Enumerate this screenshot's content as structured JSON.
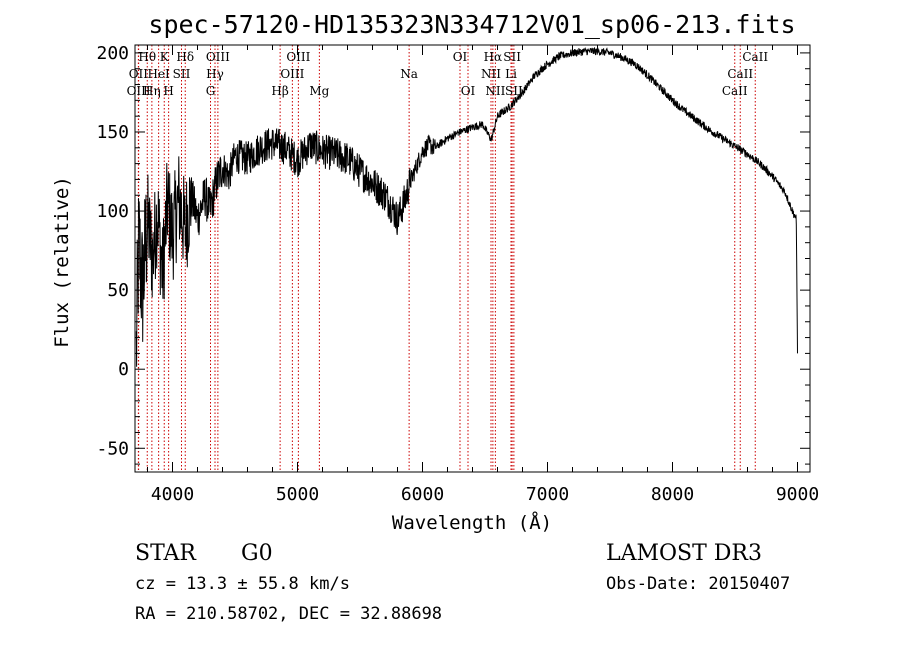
{
  "chart_data": {
    "type": "line",
    "title": "spec-57120-HD135323N334712V01_sp06-213.fits",
    "xlabel": "Wavelength (Å)",
    "ylabel": "Flux (relative)",
    "xlim": [
      3700,
      9100
    ],
    "ylim": [
      -65,
      205
    ],
    "xticks": [
      4000,
      5000,
      6000,
      7000,
      8000,
      9000
    ],
    "yticks": [
      -50,
      0,
      50,
      100,
      150,
      200
    ],
    "series": [
      {
        "name": "spectrum",
        "points": [
          [
            3710,
            10
          ],
          [
            3730,
            80
          ],
          [
            3760,
            50
          ],
          [
            3800,
            95
          ],
          [
            3840,
            70
          ],
          [
            3880,
            100
          ],
          [
            3920,
            60
          ],
          [
            3960,
            105
          ],
          [
            4000,
            85
          ],
          [
            4050,
            108
          ],
          [
            4100,
            88
          ],
          [
            4150,
            110
          ],
          [
            4200,
            95
          ],
          [
            4260,
            110
          ],
          [
            4300,
            100
          ],
          [
            4350,
            118
          ],
          [
            4400,
            128
          ],
          [
            4450,
            122
          ],
          [
            4500,
            135
          ],
          [
            4600,
            133
          ],
          [
            4700,
            140
          ],
          [
            4800,
            143
          ],
          [
            4900,
            140
          ],
          [
            5000,
            132
          ],
          [
            5100,
            142
          ],
          [
            5200,
            138
          ],
          [
            5300,
            136
          ],
          [
            5400,
            133
          ],
          [
            5500,
            125
          ],
          [
            5600,
            118
          ],
          [
            5700,
            110
          ],
          [
            5760,
            102
          ],
          [
            5800,
            95
          ],
          [
            5850,
            105
          ],
          [
            5900,
            118
          ],
          [
            5950,
            128
          ],
          [
            6000,
            138
          ],
          [
            6050,
            142
          ],
          [
            6100,
            140
          ],
          [
            6200,
            146
          ],
          [
            6300,
            150
          ],
          [
            6400,
            153
          ],
          [
            6480,
            155
          ],
          [
            6550,
            145
          ],
          [
            6600,
            160
          ],
          [
            6700,
            166
          ],
          [
            6800,
            175
          ],
          [
            6900,
            186
          ],
          [
            7000,
            193
          ],
          [
            7100,
            198
          ],
          [
            7200,
            200
          ],
          [
            7300,
            201
          ],
          [
            7400,
            201
          ],
          [
            7500,
            200
          ],
          [
            7600,
            197
          ],
          [
            7700,
            193
          ],
          [
            7800,
            186
          ],
          [
            7900,
            178
          ],
          [
            8000,
            170
          ],
          [
            8100,
            163
          ],
          [
            8200,
            157
          ],
          [
            8300,
            151
          ],
          [
            8400,
            146
          ],
          [
            8500,
            141
          ],
          [
            8600,
            136
          ],
          [
            8700,
            130
          ],
          [
            8800,
            122
          ],
          [
            8900,
            112
          ],
          [
            8960,
            100
          ],
          [
            8990,
            95
          ],
          [
            9000,
            10
          ]
        ]
      }
    ],
    "line_markers": [
      {
        "label": "Hθ",
        "x": 3798,
        "row": 1
      },
      {
        "label": "K",
        "x": 3934,
        "row": 1
      },
      {
        "label": "Hδ",
        "x": 4102,
        "row": 1
      },
      {
        "label": "OIII",
        "x": 4363,
        "row": 1
      },
      {
        "label": "OIII",
        "x": 5007,
        "row": 1
      },
      {
        "label": "OI",
        "x": 6300,
        "row": 1
      },
      {
        "label": "Hα",
        "x": 6563,
        "row": 1
      },
      {
        "label": "SII",
        "x": 6717,
        "row": 1
      },
      {
        "label": "CaII",
        "x": 8662,
        "row": 1
      },
      {
        "label": "OII",
        "x": 3727,
        "row": 2
      },
      {
        "label": "HeI",
        "x": 3889,
        "row": 2
      },
      {
        "label": "SII",
        "x": 4072,
        "row": 2
      },
      {
        "label": "Hγ",
        "x": 4340,
        "row": 2
      },
      {
        "label": "OIII",
        "x": 4959,
        "row": 2
      },
      {
        "label": "Na",
        "x": 5893,
        "row": 2
      },
      {
        "label": "NII",
        "x": 6548,
        "row": 2
      },
      {
        "label": "Li",
        "x": 6708,
        "row": 2
      },
      {
        "label": "CaII",
        "x": 8542,
        "row": 2
      },
      {
        "label": "OIII",
        "x": 3729,
        "row": 3
      },
      {
        "label": "Hη",
        "x": 3835,
        "row": 3
      },
      {
        "label": "H",
        "x": 3969,
        "row": 3
      },
      {
        "label": "G",
        "x": 4304,
        "row": 3
      },
      {
        "label": "Hβ",
        "x": 4861,
        "row": 3
      },
      {
        "label": "Mg",
        "x": 5175,
        "row": 3
      },
      {
        "label": "OI",
        "x": 6364,
        "row": 3
      },
      {
        "label": "NII",
        "x": 6583,
        "row": 3
      },
      {
        "label": "SII",
        "x": 6731,
        "row": 3
      },
      {
        "label": "CaII",
        "x": 8498,
        "row": 3
      }
    ]
  },
  "info": {
    "object_class": "STAR",
    "subclass": "G0",
    "survey": "LAMOST DR3",
    "redshift_line": "cz =  13.3 ± 55.8 km/s",
    "obs_date": "Obs-Date: 20150407",
    "coords": "RA = 210.58702, DEC =  32.88698"
  },
  "colors": {
    "marker_line": "#cc0000",
    "spectrum": "#000000"
  }
}
